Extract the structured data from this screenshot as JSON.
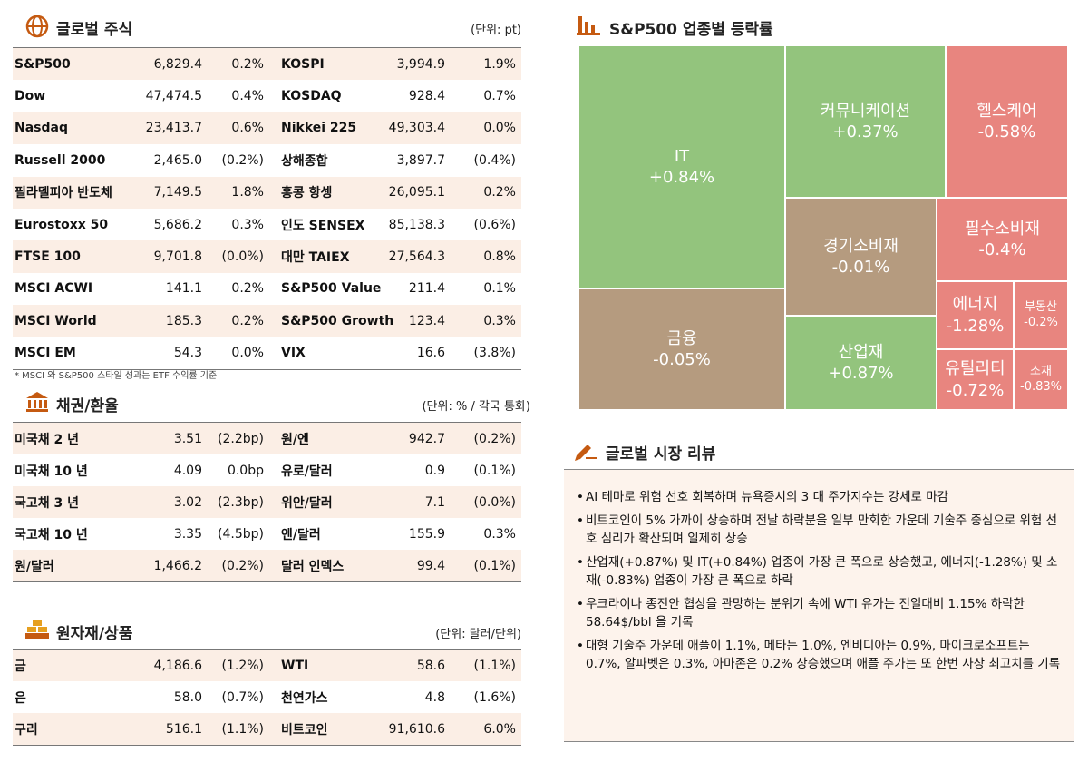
{
  "stocks": {
    "title": "글로벌 주식",
    "unit": "(단위: pt)",
    "rows": [
      [
        "S&P500",
        "6,829.4",
        "0.2%",
        "KOSPI",
        "3,994.9",
        "1.9%"
      ],
      [
        "Dow",
        "47,474.5",
        "0.4%",
        "KOSDAQ",
        "928.4",
        "0.7%"
      ],
      [
        "Nasdaq",
        "23,413.7",
        "0.6%",
        "Nikkei 225",
        "49,303.4",
        "0.0%"
      ],
      [
        "Russell 2000",
        "2,465.0",
        "(0.2%)",
        "상해종합",
        "3,897.7",
        "(0.4%)"
      ],
      [
        "필라델피아 반도체",
        "7,149.5",
        "1.8%",
        "홍콩 항셍",
        "26,095.1",
        "0.2%"
      ],
      [
        "Eurostoxx 50",
        "5,686.2",
        "0.3%",
        "인도 SENSEX",
        "85,138.3",
        "(0.6%)"
      ],
      [
        "FTSE 100",
        "9,701.8",
        "(0.0%)",
        "대만 TAIEX",
        "27,564.3",
        "0.8%"
      ],
      [
        "MSCI ACWI",
        "141.1",
        "0.2%",
        "S&P500 Value",
        "211.4",
        "0.1%"
      ],
      [
        "MSCI World",
        "185.3",
        "0.2%",
        "S&P500 Growth",
        "123.4",
        "0.3%"
      ],
      [
        "MSCI EM",
        "54.3",
        "0.0%",
        "VIX",
        "16.6",
        "(3.8%)"
      ]
    ],
    "note": "* MSCI 와 S&P500 스타일 성과는 ETF 수익률 기준"
  },
  "bonds": {
    "title": "채권/환율",
    "unit": "(단위: % / 각국 통화)",
    "rows": [
      [
        "미국채 2 년",
        "3.51",
        "(2.2bp)",
        "원/엔",
        "942.7",
        "(0.2%)"
      ],
      [
        "미국채 10 년",
        "4.09",
        "0.0bp",
        "유로/달러",
        "0.9",
        "(0.1%)"
      ],
      [
        "국고채 3 년",
        "3.02",
        "(2.3bp)",
        "위안/달러",
        "7.1",
        "(0.0%)"
      ],
      [
        "국고채 10 년",
        "3.35",
        "(4.5bp)",
        "엔/달러",
        "155.9",
        "0.3%"
      ],
      [
        "원/달러",
        "1,466.2",
        "(0.2%)",
        "달러 인덱스",
        "99.4",
        "(0.1%)"
      ]
    ]
  },
  "commodities": {
    "title": "원자재/상품",
    "unit": "(단위: 달러/단위)",
    "rows": [
      [
        "금",
        "4,186.6",
        "(1.2%)",
        "WTI",
        "58.6",
        "(1.1%)"
      ],
      [
        "은",
        "58.0",
        "(0.7%)",
        "천연가스",
        "4.8",
        "(1.6%)"
      ],
      [
        "구리",
        "516.1",
        "(1.1%)",
        "비트코인",
        "91,610.6",
        "6.0%"
      ]
    ]
  },
  "sectors": {
    "title": "S&P500 업종별 등락률",
    "cells": [
      {
        "name": "IT",
        "value": "+0.84%"
      },
      {
        "name": "금융",
        "value": "-0.05%"
      },
      {
        "name": "커뮤니케이션",
        "value": "+0.37%"
      },
      {
        "name": "경기소비재",
        "value": "-0.01%"
      },
      {
        "name": "산업재",
        "value": "+0.87%"
      },
      {
        "name": "헬스케어",
        "value": "-0.58%"
      },
      {
        "name": "필수소비재",
        "value": "-0.4%"
      },
      {
        "name": "에너지",
        "value": "-1.28%"
      },
      {
        "name": "부동산",
        "value": "-0.2%"
      },
      {
        "name": "유틸리티",
        "value": "-0.72%"
      },
      {
        "name": "소재",
        "value": "-0.83%"
      }
    ]
  },
  "review": {
    "title": "글로벌 시장 리뷰",
    "bullets": [
      "AI 테마로 위험 선호 회복하며 뉴욕증시의 3 대 주가지수는 강세로 마감",
      "비트코인이 5% 가까이 상승하며 전날 하락분을 일부 만회한 가운데 기술주 중심으로 위험 선호 심리가 확산되며 일제히 상승",
      "산업재(+0.87%) 및 IT(+0.84%) 업종이 가장 큰 폭으로 상승했고, 에너지(-1.28%) 및 소재(-0.83%) 업종이 가장 큰 폭으로 하락",
      "우크라이나 종전안 협상을 관망하는 분위기 속에 WTI 유가는 전일대비 1.15% 하락한 58.64$/bbl 을 기록",
      "대형 기술주 가운데 애플이 1.1%, 메타는 1.0%, 엔비디아는 0.9%, 마이크로소프트는 0.7%, 알파벳은 0.3%, 아마존은 0.2% 상승했으며 애플 주가는 또 한번 사상 최고치를 기록"
    ]
  }
}
